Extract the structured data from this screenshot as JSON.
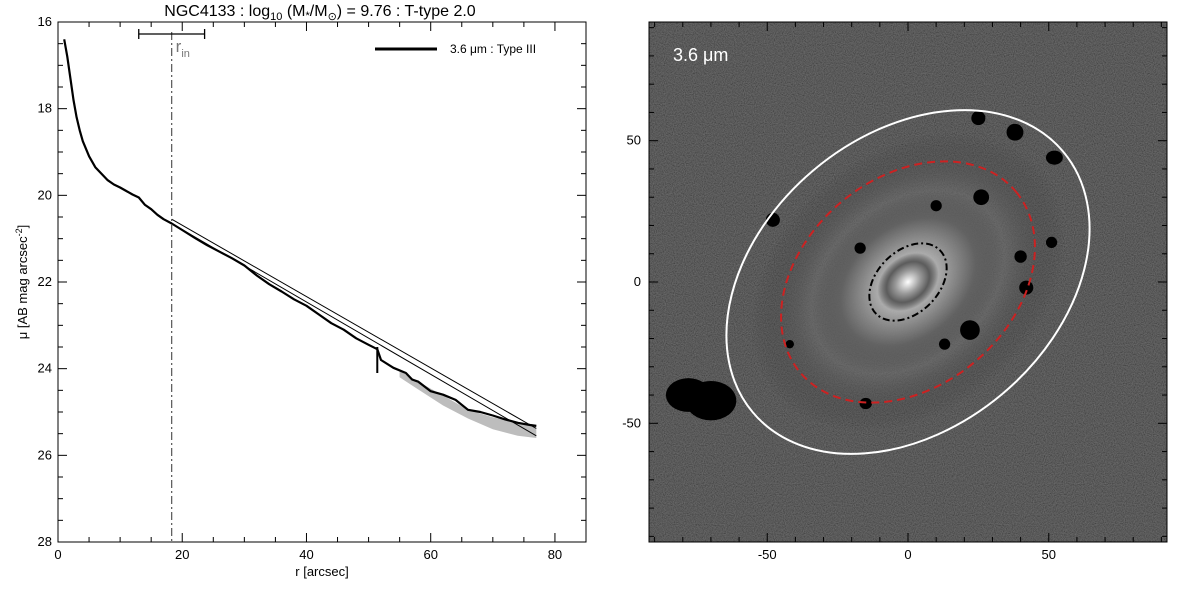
{
  "title": {
    "prefix": "NGC4133 : log",
    "sub": "10",
    "mid": " (M",
    "star": "*",
    "slash": "/M",
    "sun": "⊙",
    "suffix": ") = 9.76 : T-type 2.0"
  },
  "chart_data": [
    {
      "type": "line",
      "xlabel": "r [arcsec]",
      "ylabel_main": "μ [AB mag arcsec",
      "ylabel_sup": "-2",
      "ylabel_close": "]",
      "xlim": [
        0,
        85
      ],
      "ylim": [
        28,
        16
      ],
      "y_inverted": true,
      "xticks": [
        0,
        20,
        40,
        60,
        80
      ],
      "yticks": [
        16,
        18,
        20,
        22,
        24,
        26,
        28
      ],
      "legend": {
        "label": "3.6 μm : Type III",
        "position": "top-right"
      },
      "annotation": {
        "r_in_label": "r",
        "r_in_sub": "in",
        "r_in": 18.3,
        "r_in_err": [
          13.0,
          23.6
        ],
        "break_marker_r": 51.4,
        "break_marker_mu": [
          23.5,
          24.1
        ]
      },
      "series": [
        {
          "name": "3.6 μm : Type III",
          "x": [
            1.0,
            1.5,
            2.0,
            2.5,
            3.0,
            3.5,
            4.0,
            5.0,
            6.0,
            7.0,
            8.0,
            9.0,
            10.0,
            11.0,
            12.0,
            13.0,
            14.0,
            15.0,
            16.0,
            17.0,
            18.3,
            20.0,
            22.0,
            24.0,
            26.0,
            28.0,
            30.0,
            32.0,
            34.0,
            36.0,
            38.0,
            40.0,
            42.0,
            44.0,
            46.0,
            48.0,
            50.0,
            51.4,
            52.0,
            54.0,
            56.0,
            57.0,
            58.0,
            60.0,
            62.0,
            64.0,
            66.0,
            68.0,
            70.0,
            72.0,
            74.0,
            76.0,
            77.0
          ],
          "y": [
            16.4,
            16.8,
            17.3,
            17.8,
            18.2,
            18.5,
            18.75,
            19.1,
            19.35,
            19.5,
            19.65,
            19.75,
            19.82,
            19.9,
            19.98,
            20.05,
            20.22,
            20.32,
            20.45,
            20.55,
            20.65,
            20.8,
            20.98,
            21.15,
            21.3,
            21.45,
            21.62,
            21.85,
            22.05,
            22.22,
            22.4,
            22.55,
            22.75,
            22.95,
            23.1,
            23.3,
            23.45,
            23.55,
            23.8,
            23.98,
            24.1,
            24.25,
            24.3,
            24.52,
            24.6,
            24.72,
            24.95,
            25.0,
            25.08,
            25.17,
            25.25,
            25.3,
            25.32
          ]
        },
        {
          "name": "",
          "x": [
            18.3,
            77.0
          ],
          "y": [
            20.55,
            25.38
          ]
        },
        {
          "name": "",
          "x": [
            18.3,
            77.0
          ],
          "y": [
            20.65,
            25.55
          ]
        }
      ],
      "uncertainty_band": {
        "x": [
          55.0,
          58.0,
          62.0,
          66.0,
          70.0,
          74.0,
          77.0
        ],
        "y_low": [
          24.05,
          24.3,
          24.62,
          24.95,
          25.12,
          25.25,
          25.3
        ],
        "y_high": [
          24.2,
          24.48,
          24.85,
          25.15,
          25.4,
          25.55,
          25.6
        ]
      }
    },
    {
      "type": "heatmap",
      "label": "3.6 μm",
      "xlim": [
        -92,
        92
      ],
      "ylim": [
        -92,
        92
      ],
      "xticks": [
        -50,
        0,
        50
      ],
      "yticks": [
        -50,
        0,
        50
      ],
      "colormap": "grayscale",
      "galaxy_center": [
        0,
        0
      ],
      "ellipses": [
        {
          "label": "white",
          "color": "#ffffff",
          "style": "solid",
          "center": [
            0,
            0
          ],
          "semi_major": 72,
          "semi_minor": 52,
          "angle_deg": 40
        },
        {
          "label": "red",
          "color": "#cc2222",
          "style": "dashed",
          "center": [
            0,
            0
          ],
          "semi_major": 50,
          "semi_minor": 37,
          "angle_deg": 40
        },
        {
          "label": "inner",
          "color": "#000000",
          "style": "dashdot",
          "center": [
            0,
            0
          ],
          "semi_major": 16,
          "semi_minor": 11,
          "angle_deg": 45
        }
      ]
    }
  ]
}
